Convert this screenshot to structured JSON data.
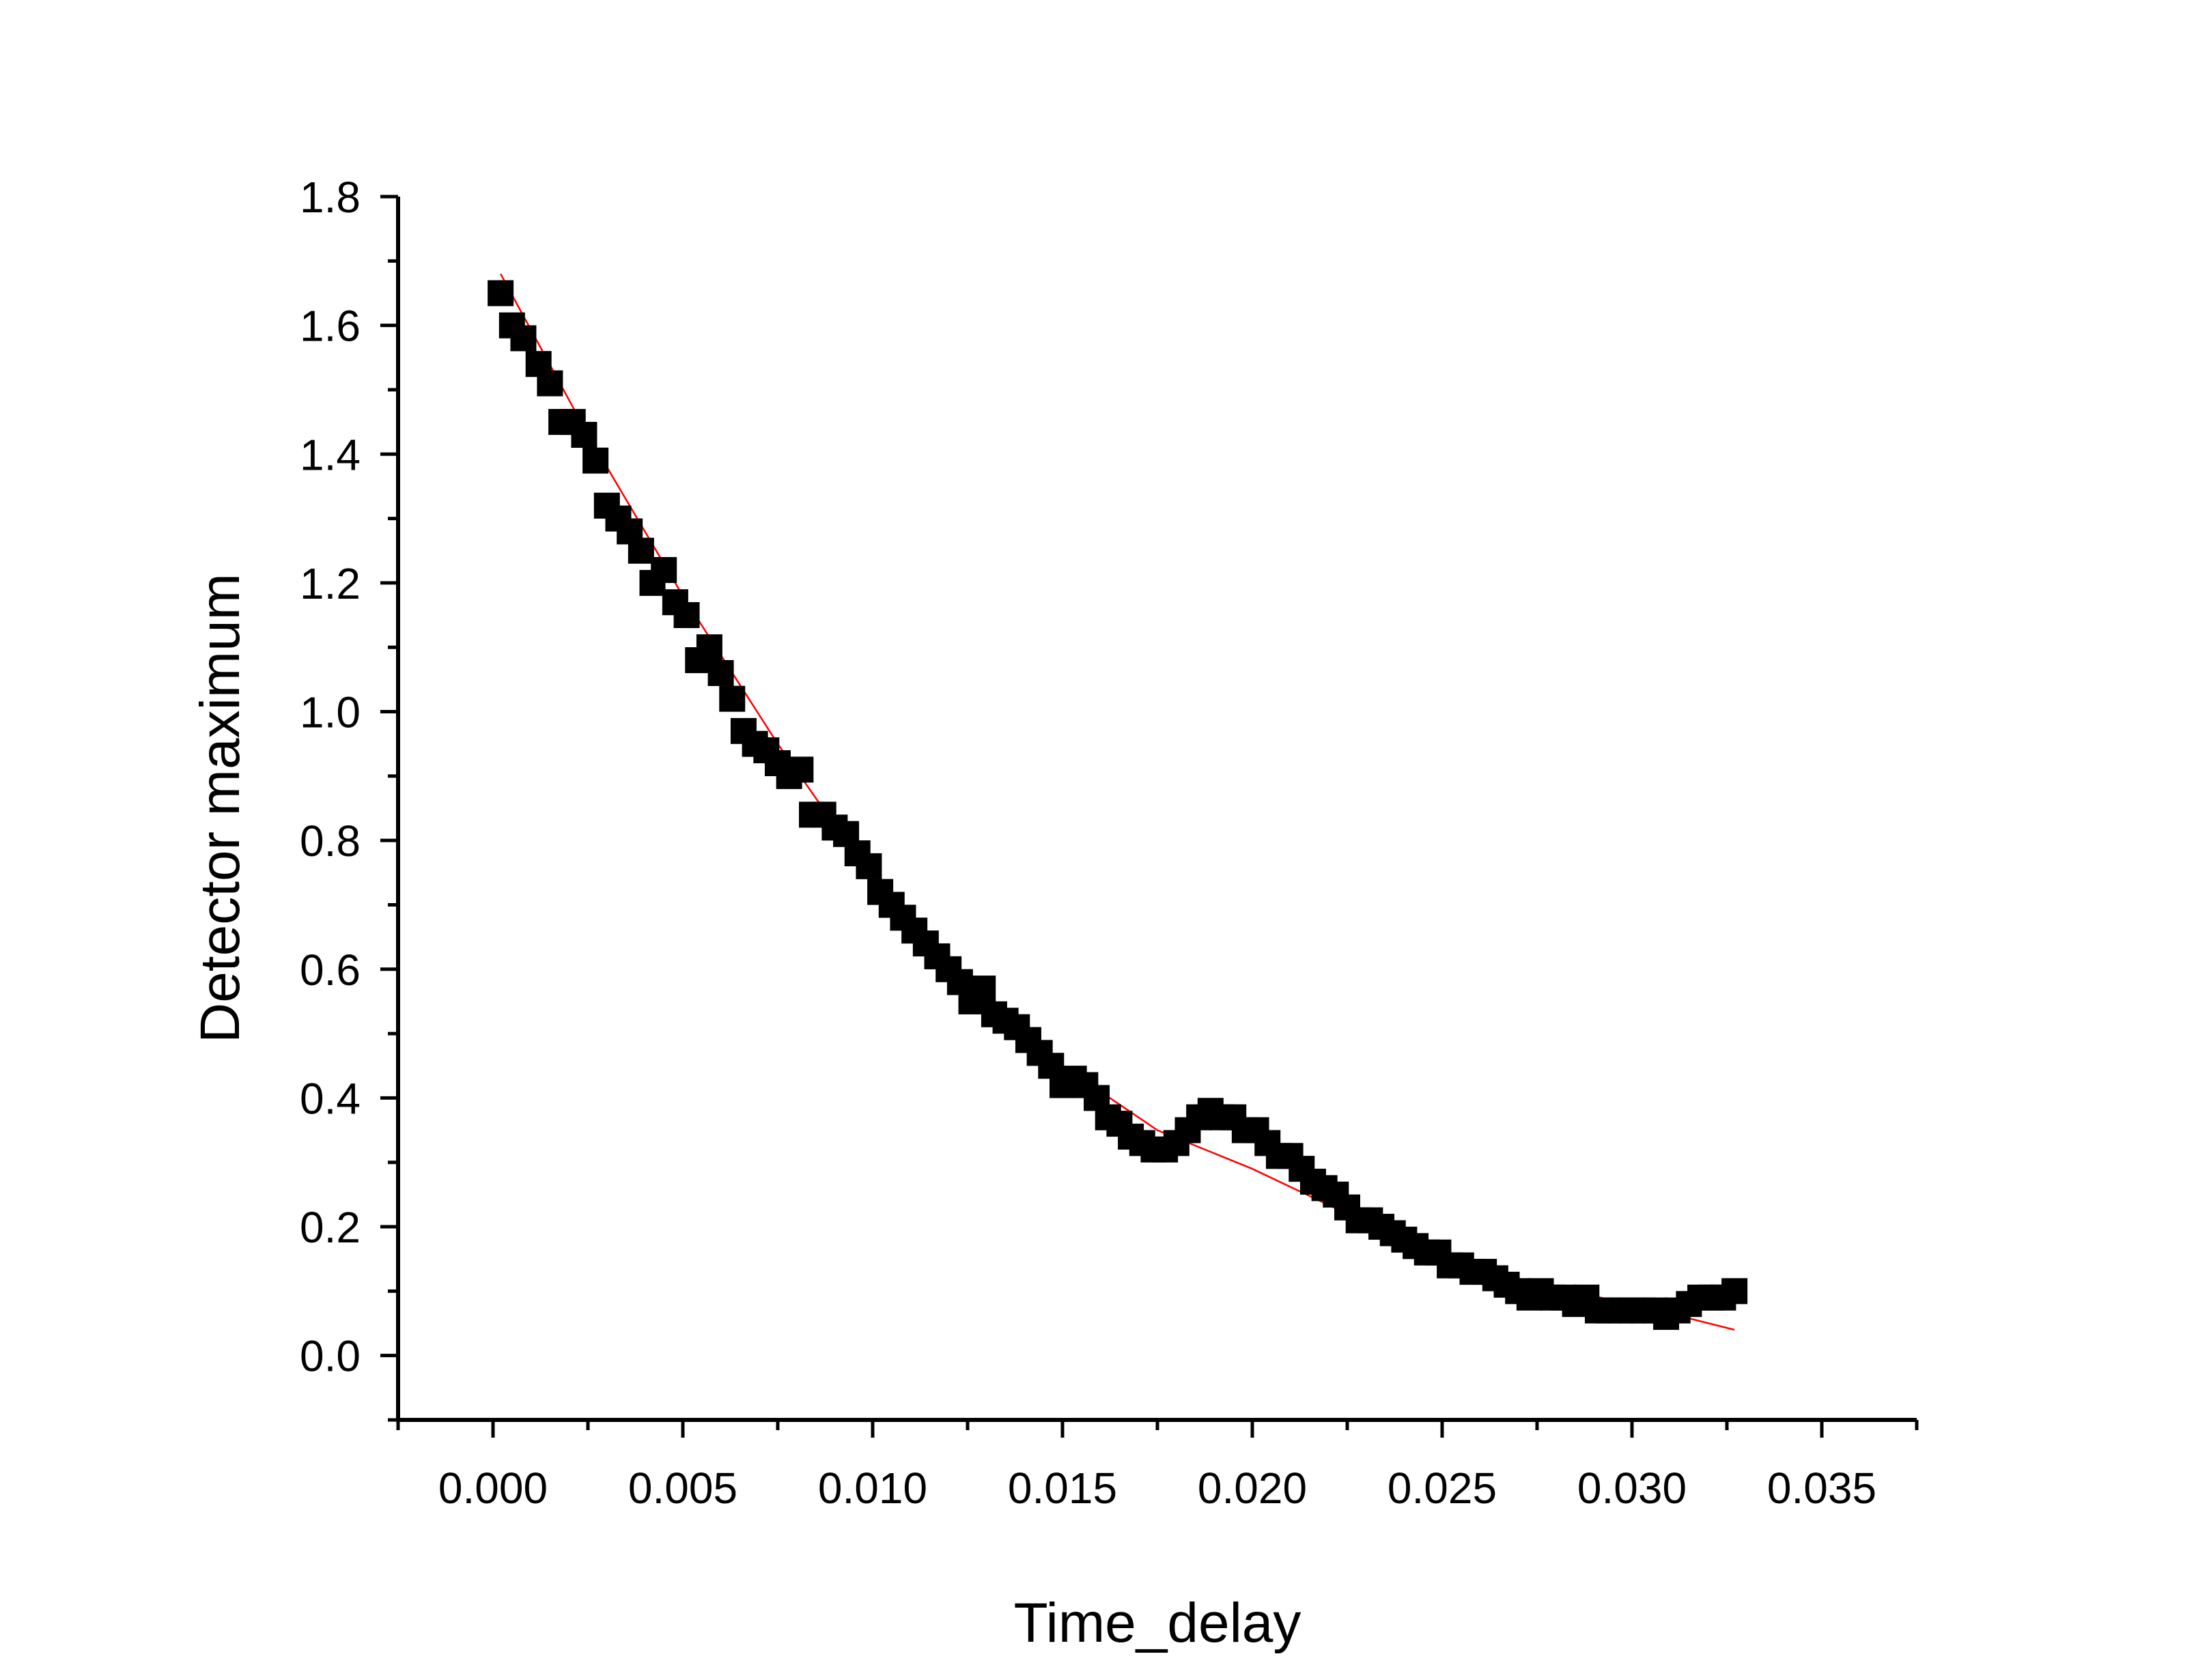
{
  "chart_data": {
    "type": "scatter",
    "title": "",
    "xlabel": "Time_delay",
    "ylabel": "Detector maximum",
    "xlim": [
      -0.0025,
      0.0375
    ],
    "ylim": [
      -0.1,
      1.8
    ],
    "x_ticks": [
      "0.000",
      "0.005",
      "0.010",
      "0.015",
      "0.020",
      "0.025",
      "0.030",
      "0.035"
    ],
    "y_ticks": [
      "0.0",
      "0.2",
      "0.4",
      "0.6",
      "0.8",
      "1.0",
      "1.2",
      "1.4",
      "1.6",
      "1.8"
    ],
    "grid": false,
    "legend": "none",
    "colors": {
      "points": "#000000",
      "fit": "#ff0000",
      "axes": "#000000"
    },
    "series": [
      {
        "marker": "square",
        "x": [
          0.0002,
          0.0005,
          0.0008,
          0.0012,
          0.0015,
          0.0018,
          0.0021,
          0.0024,
          0.0027,
          0.003,
          0.0033,
          0.0036,
          0.0039,
          0.0042,
          0.0045,
          0.0048,
          0.0051,
          0.0054,
          0.0057,
          0.006,
          0.0063,
          0.0066,
          0.0069,
          0.0072,
          0.0075,
          0.0078,
          0.0081,
          0.0084,
          0.0087,
          0.009,
          0.0093,
          0.0096,
          0.0099,
          0.0102,
          0.0105,
          0.0108,
          0.0111,
          0.0114,
          0.0117,
          0.012,
          0.0123,
          0.0126,
          0.0129,
          0.0132,
          0.0135,
          0.0138,
          0.0141,
          0.0144,
          0.0147,
          0.015,
          0.0153,
          0.0156,
          0.0159,
          0.0162,
          0.0165,
          0.0168,
          0.0171,
          0.0174,
          0.0177,
          0.018,
          0.0183,
          0.0186,
          0.0189,
          0.0192,
          0.0195,
          0.0198,
          0.0201,
          0.0204,
          0.0207,
          0.021,
          0.0213,
          0.0216,
          0.0219,
          0.0222,
          0.0225,
          0.0228,
          0.0231,
          0.0234,
          0.0237,
          0.024,
          0.0243,
          0.0246,
          0.0249,
          0.0252,
          0.0255,
          0.0258,
          0.0261,
          0.0264,
          0.0267,
          0.027,
          0.0273,
          0.0276,
          0.0279,
          0.0282,
          0.0285,
          0.0288,
          0.0291,
          0.0294,
          0.0297,
          0.03,
          0.0303,
          0.0306,
          0.0309,
          0.0312,
          0.0315,
          0.0318,
          0.0321,
          0.0324,
          0.0327
        ],
        "y": [
          1.65,
          1.6,
          1.58,
          1.54,
          1.51,
          1.45,
          1.45,
          1.43,
          1.39,
          1.32,
          1.3,
          1.28,
          1.25,
          1.2,
          1.22,
          1.17,
          1.15,
          1.08,
          1.1,
          1.06,
          1.02,
          0.97,
          0.95,
          0.94,
          0.92,
          0.9,
          0.91,
          0.84,
          0.84,
          0.82,
          0.81,
          0.78,
          0.76,
          0.72,
          0.7,
          0.68,
          0.66,
          0.64,
          0.62,
          0.6,
          0.58,
          0.55,
          0.57,
          0.53,
          0.52,
          0.51,
          0.49,
          0.47,
          0.45,
          0.42,
          0.43,
          0.42,
          0.4,
          0.37,
          0.36,
          0.34,
          0.33,
          0.32,
          0.32,
          0.33,
          0.35,
          0.37,
          0.38,
          0.37,
          0.37,
          0.35,
          0.35,
          0.33,
          0.31,
          0.31,
          0.29,
          0.27,
          0.26,
          0.25,
          0.23,
          0.21,
          0.21,
          0.2,
          0.19,
          0.18,
          0.17,
          0.16,
          0.16,
          0.14,
          0.14,
          0.13,
          0.13,
          0.12,
          0.11,
          0.1,
          0.09,
          0.1,
          0.09,
          0.09,
          0.08,
          0.09,
          0.07,
          0.07,
          0.07,
          0.07,
          0.07,
          0.07,
          0.06,
          0.07,
          0.08,
          0.09,
          0.09,
          0.09,
          0.1
        ]
      }
    ],
    "fit_line": {
      "x": [
        0.0002,
        0.0025,
        0.005,
        0.0075,
        0.01,
        0.0125,
        0.015,
        0.0175,
        0.02,
        0.0225,
        0.025,
        0.0275,
        0.03,
        0.0327
      ],
      "y": [
        1.68,
        1.43,
        1.18,
        0.95,
        0.74,
        0.57,
        0.45,
        0.35,
        0.29,
        0.22,
        0.16,
        0.11,
        0.08,
        0.04
      ]
    }
  }
}
